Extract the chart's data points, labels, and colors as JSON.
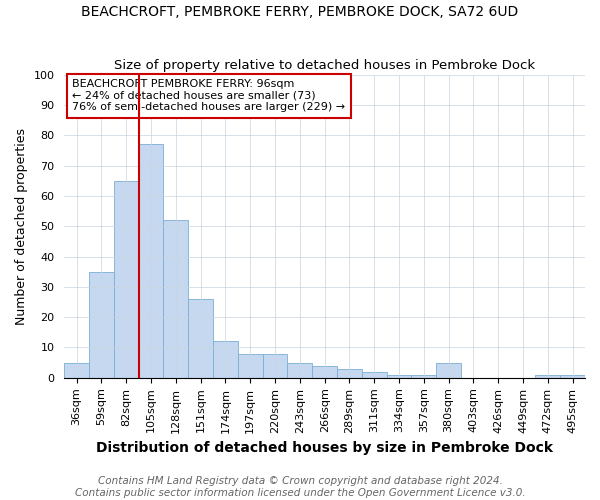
{
  "title": "BEACHCROFT, PEMBROKE FERRY, PEMBROKE DOCK, SA72 6UD",
  "subtitle": "Size of property relative to detached houses in Pembroke Dock",
  "xlabel": "Distribution of detached houses by size in Pembroke Dock",
  "ylabel": "Number of detached properties",
  "categories": [
    "36sqm",
    "59sqm",
    "82sqm",
    "105sqm",
    "128sqm",
    "151sqm",
    "174sqm",
    "197sqm",
    "220sqm",
    "243sqm",
    "266sqm",
    "289sqm",
    "311sqm",
    "334sqm",
    "357sqm",
    "380sqm",
    "403sqm",
    "426sqm",
    "449sqm",
    "472sqm",
    "495sqm"
  ],
  "values": [
    5,
    35,
    65,
    77,
    52,
    26,
    12,
    8,
    8,
    5,
    4,
    3,
    2,
    1,
    1,
    5,
    0,
    0,
    0,
    1,
    1
  ],
  "bar_color": "#c5d8ef",
  "bar_edge_color": "#7bafd4",
  "vline_x_index": 3,
  "vline_color": "#cc0000",
  "ylim": [
    0,
    100
  ],
  "yticks": [
    0,
    10,
    20,
    30,
    40,
    50,
    60,
    70,
    80,
    90,
    100
  ],
  "annotation_text": "BEACHCROFT PEMBROKE FERRY: 96sqm\n← 24% of detached houses are smaller (73)\n76% of semi-detached houses are larger (229) →",
  "annotation_box_color": "#ffffff",
  "annotation_box_edge": "#cc0000",
  "footer_line1": "Contains HM Land Registry data © Crown copyright and database right 2024.",
  "footer_line2": "Contains public sector information licensed under the Open Government Licence v3.0.",
  "bg_color": "#ffffff",
  "grid_color": "#c8d4e0",
  "title_fontsize": 10,
  "subtitle_fontsize": 9.5,
  "xlabel_fontsize": 10,
  "ylabel_fontsize": 9,
  "tick_fontsize": 8,
  "annotation_fontsize": 8,
  "footer_fontsize": 7.5
}
